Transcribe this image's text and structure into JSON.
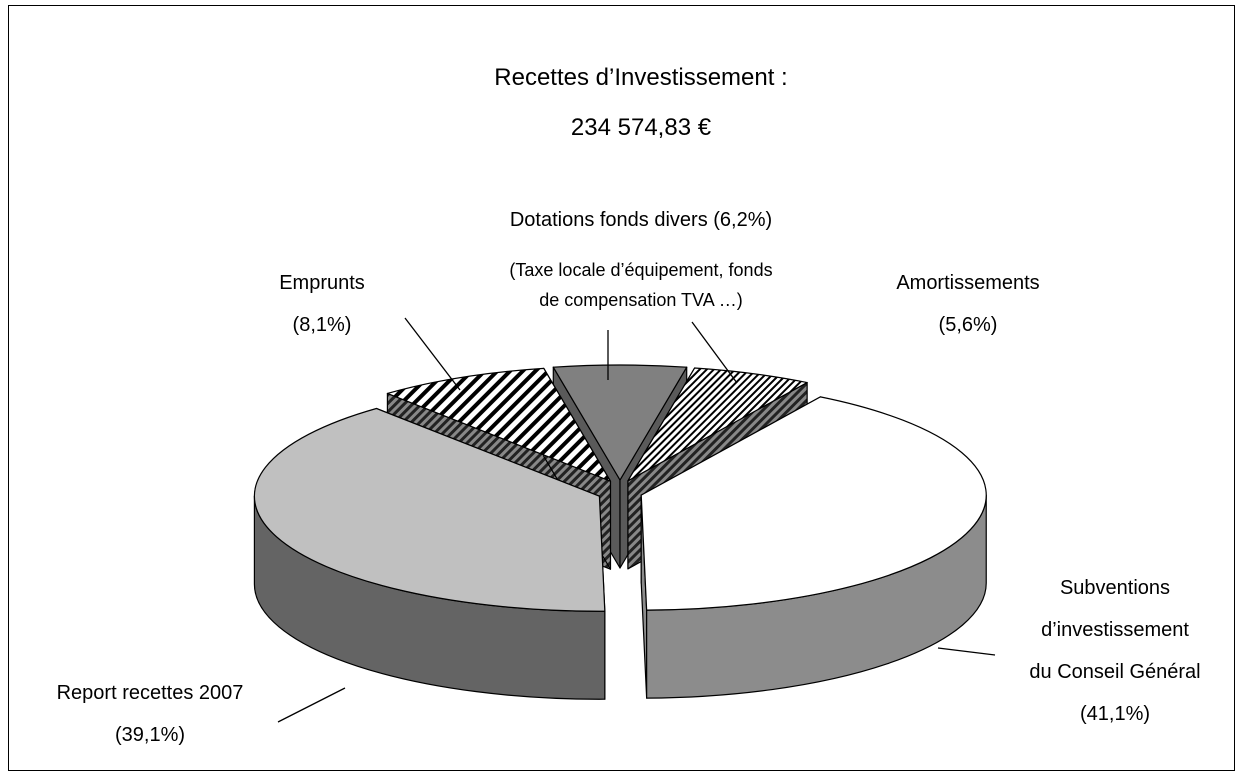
{
  "chart_data": {
    "type": "pie3d",
    "title": "Recettes d’Investissement :",
    "subtitle": "234 574,83 €",
    "categories": [
      "Dotations fonds divers",
      "Amortissements",
      "Subventions\nd’investissement\ndu Conseil Général",
      "Report recettes 2007",
      "Emprunts"
    ],
    "values": [
      6.2,
      5.6,
      41.1,
      39.1,
      8.1
    ],
    "value_labels": [
      "(6,2%)",
      "(5,6%)",
      "(41,1%)",
      "(39,1%)",
      "(8,1%)"
    ],
    "colors": [
      "#808080",
      "#ffffff",
      "#ffffff",
      "#c0c0c0",
      "#ffffff"
    ],
    "side_colors": [
      "#5a5a5a",
      "#6a6a6a",
      "#8c8c8c",
      "#646464",
      "#6a6a6a"
    ],
    "hatch": [
      null,
      "fine",
      null,
      null,
      "wide"
    ],
    "annotations": [
      "(Taxe locale d’équipement, fonds\nde compensation TVA …)"
    ]
  }
}
